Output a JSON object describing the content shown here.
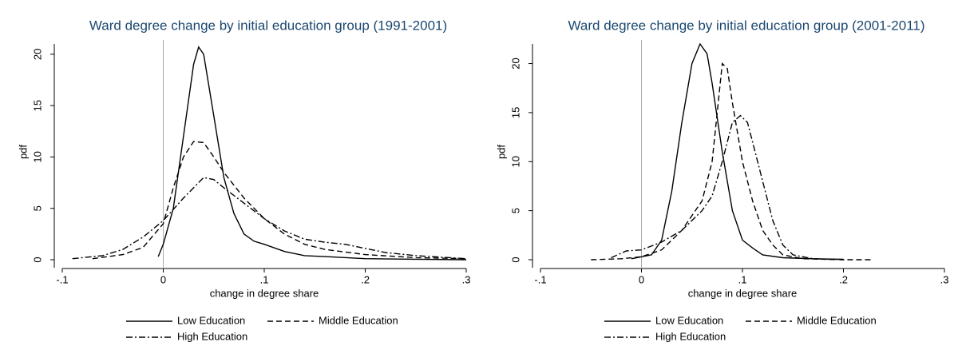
{
  "chart_data": [
    {
      "type": "line",
      "title": "Ward degree change by initial education group (1991-2001)",
      "x_label": "change in degree share",
      "y_label": "pdf",
      "xlim": [
        -0.1,
        0.3
      ],
      "ylim": [
        0,
        21
      ],
      "xticks": [
        {
          "value": -0.1,
          "label": "-.1"
        },
        0,
        {
          "value": 0.1,
          "label": ".1"
        },
        {
          "value": 0.2,
          "label": ".2"
        },
        {
          "value": 0.3,
          "label": ".3"
        }
      ],
      "yticks": [
        0,
        5,
        10,
        15,
        20
      ],
      "reference_line_x": 0,
      "legend": "bottom",
      "series": [
        {
          "name": "Low Education",
          "color": "#000000",
          "dash": "solid",
          "x": [
            -0.005,
            0,
            0.01,
            0.02,
            0.03,
            0.035,
            0.04,
            0.05,
            0.06,
            0.07,
            0.08,
            0.09,
            0.1,
            0.12,
            0.14,
            0.16,
            0.2,
            0.25,
            0.3
          ],
          "values": [
            0.3,
            1.5,
            5,
            12,
            19,
            20.7,
            20,
            14,
            8,
            4.5,
            2.5,
            1.8,
            1.5,
            0.8,
            0.4,
            0.3,
            0.1,
            0.05,
            0
          ]
        },
        {
          "name": "Middle Education",
          "color": "#000000",
          "dash": "dash",
          "x": [
            -0.07,
            -0.04,
            -0.02,
            0,
            0.01,
            0.02,
            0.03,
            0.04,
            0.05,
            0.06,
            0.08,
            0.1,
            0.12,
            0.14,
            0.16,
            0.2,
            0.25,
            0.3
          ],
          "values": [
            0.1,
            0.5,
            1.2,
            3.5,
            7,
            10,
            11.5,
            11.4,
            10,
            8.5,
            6,
            4,
            2.5,
            1.5,
            1,
            0.5,
            0.2,
            0.1
          ]
        },
        {
          "name": "High Education",
          "color": "#000000",
          "dash": "dashdot",
          "x": [
            -0.09,
            -0.06,
            -0.04,
            -0.02,
            0,
            0.02,
            0.04,
            0.05,
            0.06,
            0.08,
            0.1,
            0.12,
            0.14,
            0.16,
            0.18,
            0.2,
            0.22,
            0.25,
            0.3
          ],
          "values": [
            0.1,
            0.4,
            1,
            2.2,
            3.8,
            6,
            8,
            7.8,
            7,
            5.5,
            4,
            2.8,
            2,
            1.7,
            1.5,
            1.1,
            0.7,
            0.4,
            0.1
          ]
        }
      ]
    },
    {
      "type": "line",
      "title": "Ward degree change by initial education group (2001-2011)",
      "x_label": "change in degree share",
      "y_label": "pdf",
      "xlim": [
        -0.1,
        0.3
      ],
      "ylim": [
        0,
        22
      ],
      "xticks": [
        {
          "value": -0.1,
          "label": "-.1"
        },
        0,
        {
          "value": 0.1,
          "label": ".1"
        },
        {
          "value": 0.2,
          "label": ".2"
        },
        {
          "value": 0.3,
          "label": ".3"
        }
      ],
      "yticks": [
        0,
        5,
        10,
        15,
        20
      ],
      "reference_line_x": 0,
      "legend": "bottom",
      "series": [
        {
          "name": "Low Education",
          "color": "#000000",
          "dash": "solid",
          "x": [
            -0.01,
            0.01,
            0.02,
            0.03,
            0.04,
            0.05,
            0.058,
            0.065,
            0.07,
            0.08,
            0.09,
            0.1,
            0.11,
            0.12,
            0.14,
            0.17,
            0.2
          ],
          "values": [
            0.1,
            0.5,
            2,
            7,
            14,
            20,
            22,
            21,
            18,
            11,
            5,
            2,
            1.2,
            0.5,
            0.2,
            0.1,
            0.05
          ]
        },
        {
          "name": "Middle Education",
          "color": "#000000",
          "dash": "dash",
          "x": [
            -0.05,
            -0.02,
            0,
            0.02,
            0.04,
            0.06,
            0.07,
            0.075,
            0.08,
            0.085,
            0.09,
            0.1,
            0.11,
            0.12,
            0.13,
            0.14,
            0.16,
            0.2,
            0.23
          ],
          "values": [
            0,
            0.1,
            0.3,
            1,
            3,
            6,
            10,
            15,
            20,
            19.5,
            16,
            10,
            6,
            3,
            1.5,
            0.5,
            0.1,
            0,
            0
          ]
        },
        {
          "name": "High Education",
          "color": "#000000",
          "dash": "dashdot",
          "x": [
            -0.03,
            -0.015,
            0,
            0.02,
            0.04,
            0.06,
            0.07,
            0.08,
            0.09,
            0.098,
            0.105,
            0.11,
            0.12,
            0.13,
            0.14,
            0.15,
            0.17,
            0.2
          ],
          "values": [
            0.2,
            0.9,
            1,
            1.8,
            3,
            5,
            6.5,
            10,
            14,
            14.7,
            14,
            12,
            8,
            4,
            1.5,
            0.5,
            0.1,
            0
          ]
        }
      ]
    }
  ]
}
